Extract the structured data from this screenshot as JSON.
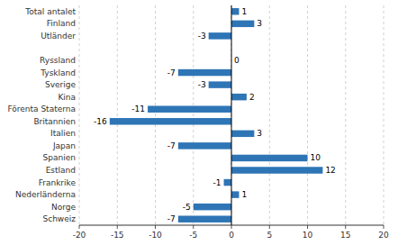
{
  "chart_data": {
    "type": "bar",
    "orientation": "horizontal",
    "categories": [
      "Total antalet",
      "Finland",
      "Utländer",
      null,
      "Ryssland",
      "Tyskland",
      "Sverige",
      "Kina",
      "Förenta Staterna",
      "Britannien",
      "Italien",
      "Japan",
      "Spanien",
      "Estland",
      "Frankrike",
      "Nederländerna",
      "Norge",
      "Schweiz"
    ],
    "values": [
      1,
      3,
      -3,
      null,
      0,
      -7,
      -3,
      2,
      -11,
      -16,
      3,
      -7,
      10,
      12,
      -1,
      1,
      -5,
      -7
    ],
    "color": "#2E75B6",
    "xlim": [
      -20,
      20
    ],
    "xticks": [
      -20,
      -15,
      -10,
      -5,
      0,
      5,
      10,
      15,
      20
    ],
    "grid": true,
    "data_labels": true
  }
}
